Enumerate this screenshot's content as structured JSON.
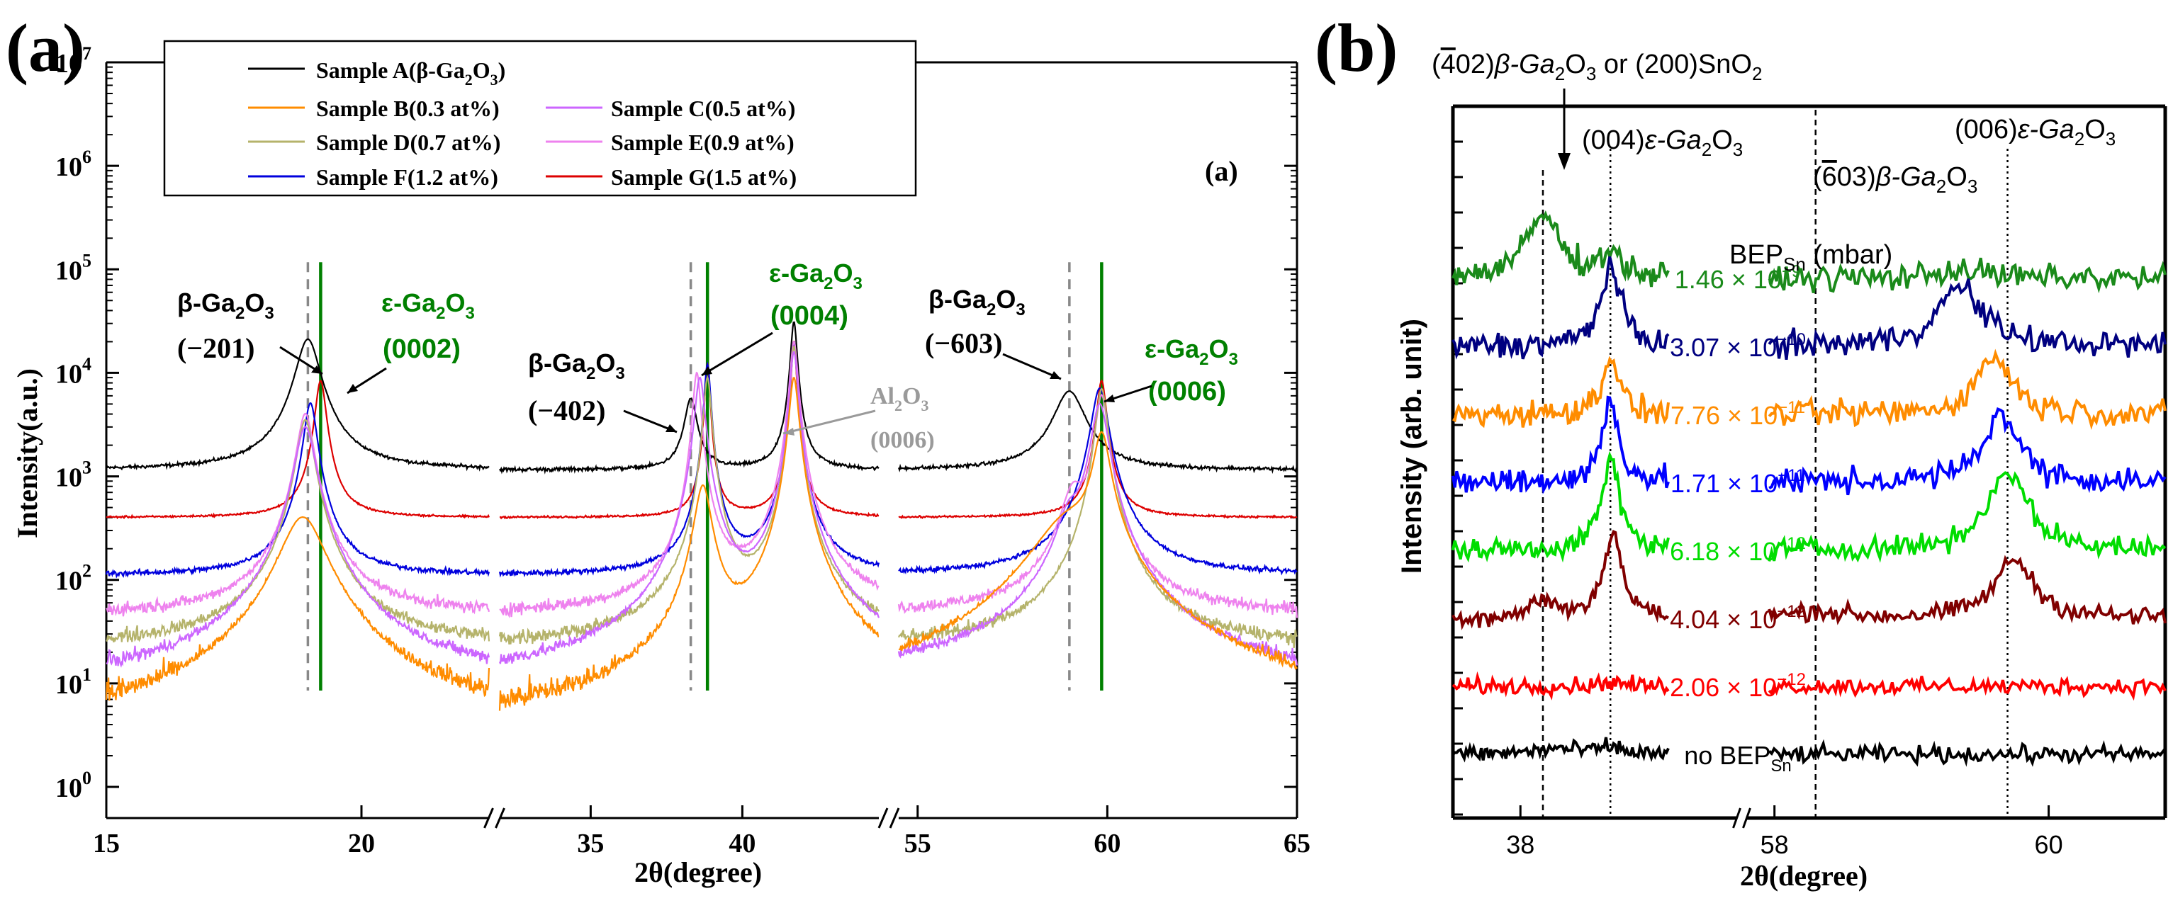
{
  "figure": {
    "label_a": "(a)",
    "label_b": "(b)"
  },
  "chart_data": [
    {
      "id": "a",
      "type": "line",
      "yscale": "log",
      "title": "",
      "panel_label": "(a)",
      "inner_label": "(a)",
      "xlabel": "2θ(degree)",
      "ylabel": "Intensity(a.u.)",
      "ylim": [
        0.5,
        10000000
      ],
      "segments": [
        {
          "xlim": [
            15,
            22.5
          ],
          "ticks": [
            15,
            20
          ]
        },
        {
          "xlim": [
            32,
            44.5
          ],
          "ticks": [
            35,
            40
          ]
        },
        {
          "xlim": [
            54.5,
            65
          ],
          "ticks": [
            55,
            60,
            65
          ]
        }
      ],
      "yticks": [
        {
          "v": 1,
          "base": "10",
          "exp": "0"
        },
        {
          "v": 10,
          "base": "10",
          "exp": "1"
        },
        {
          "v": 100,
          "base": "10",
          "exp": "2"
        },
        {
          "v": 1000,
          "base": "10",
          "exp": "3"
        },
        {
          "v": 10000,
          "base": "10",
          "exp": "4"
        },
        {
          "v": 100000,
          "base": "10",
          "exp": "5"
        },
        {
          "v": 1000000,
          "base": "10",
          "exp": "6"
        },
        {
          "v": 10000000,
          "base": "10",
          "exp": "7"
        }
      ],
      "legend": [
        {
          "name": "Sample A(β-Ga",
          "sub": "2",
          "mid": "O",
          "sub2": "3",
          "end": ")",
          "color": "#000000"
        },
        {
          "name": "Sample B(0.3 at%)",
          "color": "#ff8c00"
        },
        {
          "name": "Sample C(0.5 at%)",
          "color": "#cc66ff"
        },
        {
          "name": "Sample D(0.7 at%)",
          "color": "#b5b36b"
        },
        {
          "name": "Sample E(0.9 at%)",
          "color": "#ee82ee"
        },
        {
          "name": "Sample F(1.2 at%)",
          "color": "#0000dd"
        },
        {
          "name": "Sample G(1.5 at%)",
          "color": "#dd0000"
        }
      ],
      "series": [
        {
          "name": "Sample A",
          "color": "#000000",
          "base": 1150,
          "noise": 0.02,
          "peaks": [
            [
              18.95,
              20000,
              0.22
            ],
            [
              38.3,
              4500,
              0.2
            ],
            [
              41.7,
              30000,
              0.1
            ],
            [
              59.0,
              5500,
              0.4
            ]
          ]
        },
        {
          "name": "Sample G",
          "color": "#dd0000",
          "base": 400,
          "noise": 0.01,
          "peaks": [
            [
              19.2,
              8000,
              0.1
            ],
            [
              38.85,
              12000,
              0.08
            ],
            [
              41.7,
              20000,
              0.08
            ],
            [
              59.85,
              8000,
              0.12
            ]
          ]
        },
        {
          "name": "Sample F",
          "color": "#0000dd",
          "base": 110,
          "noise": 0.03,
          "peaks": [
            [
              19.0,
              5000,
              0.12
            ],
            [
              38.85,
              12000,
              0.1
            ],
            [
              41.7,
              20000,
              0.1
            ],
            [
              59.8,
              7000,
              0.2
            ]
          ]
        },
        {
          "name": "Sample E",
          "color": "#ee82ee",
          "base": 45,
          "noise": 0.08,
          "peaks": [
            [
              18.9,
              4000,
              0.15
            ],
            [
              38.5,
              10000,
              0.12
            ],
            [
              41.7,
              20000,
              0.12
            ],
            [
              59.1,
              600,
              0.3
            ],
            [
              59.85,
              6000,
              0.15
            ]
          ]
        },
        {
          "name": "Sample D",
          "color": "#b5b36b",
          "base": 22,
          "noise": 0.1,
          "peaks": [
            [
              18.9,
              3500,
              0.15
            ],
            [
              38.85,
              9000,
              0.12
            ],
            [
              41.7,
              18000,
              0.1
            ],
            [
              59.85,
              7000,
              0.14
            ]
          ]
        },
        {
          "name": "Sample C",
          "color": "#cc66ff",
          "base": 9,
          "noise": 0.15,
          "peaks": [
            [
              18.9,
              3000,
              0.18
            ],
            [
              38.6,
              9000,
              0.15
            ],
            [
              41.7,
              16000,
              0.12
            ],
            [
              59.0,
              300,
              0.3
            ],
            [
              59.8,
              5000,
              0.2
            ]
          ]
        },
        {
          "name": "Sample B",
          "color": "#ff8c00",
          "base": 3,
          "noise": 0.35,
          "peaks": [
            [
              18.85,
              400,
              0.4
            ],
            [
              38.7,
              800,
              0.25
            ],
            [
              41.7,
              9000,
              0.14
            ],
            [
              59.0,
              350,
              0.9
            ],
            [
              59.85,
              2500,
              0.2
            ]
          ]
        }
      ],
      "ref_lines": [
        {
          "x": 18.95,
          "style": "dash",
          "color": "#888888"
        },
        {
          "x": 19.2,
          "style": "solid",
          "color": "#008000"
        },
        {
          "x": 38.3,
          "style": "dash",
          "color": "#888888"
        },
        {
          "x": 38.85,
          "style": "solid",
          "color": "#008000"
        },
        {
          "x": 59.0,
          "style": "dash",
          "color": "#888888"
        },
        {
          "x": 59.85,
          "style": "solid",
          "color": "#008000"
        }
      ],
      "annotations": {
        "b201": {
          "phase": "β-Ga",
          "s1": "2",
          "o": "O",
          "s2": "3",
          "hkl": "(−201)"
        },
        "e0002": {
          "phase": "ε-Ga",
          "s1": "2",
          "o": "O",
          "s2": "3",
          "hkl": "(0002)"
        },
        "b402": {
          "phase": "β-Ga",
          "s1": "2",
          "o": "O",
          "s2": "3",
          "hkl": "(−402)"
        },
        "e0004": {
          "phase": "ε-Ga",
          "s1": "2",
          "o": "O",
          "s2": "3",
          "hkl": "(0004)"
        },
        "al": {
          "phase": "Al",
          "s1": "2",
          "o": "O",
          "s2": "3",
          "hkl": "(0006)"
        },
        "b603": {
          "phase": "β-Ga",
          "s1": "2",
          "o": "O",
          "s2": "3",
          "hkl": "(−603)"
        },
        "e0006": {
          "phase": "ε-Ga",
          "s1": "2",
          "o": "O",
          "s2": "3",
          "hkl": "(0006)"
        }
      }
    },
    {
      "id": "b",
      "type": "line",
      "title": "",
      "panel_label": "(b)",
      "xlabel": "2θ(degree)",
      "ylabel": "Intensity (arb. unit)",
      "segments": [
        {
          "xlim": [
            36.5,
            42.8
          ],
          "ticks": [
            38
          ]
        },
        {
          "xlim": [
            57.8,
            60.85
          ],
          "ticks": [
            58,
            60
          ]
        }
      ],
      "ref_lines": [
        {
          "x": 38.5,
          "style": "dash"
        },
        {
          "x": 40.0,
          "style": "dot"
        },
        {
          "x": 58.3,
          "style": "dash"
        },
        {
          "x": 59.7,
          "style": "dot"
        }
      ],
      "legend_title": {
        "pre": "BEP",
        "sub": "Sn",
        "post": " (mbar)"
      },
      "series": [
        {
          "label": "1.46",
          "exp": "−9",
          "color": "#1a8a1a",
          "offset": 7,
          "amp": 0.35,
          "peaks": [
            [
              38.5,
              1.7,
              0.45
            ],
            [
              40.0,
              0.7,
              0.25
            ],
            [
              59.35,
              0.25,
              0.2
            ]
          ]
        },
        {
          "label": "3.07",
          "exp": "−10",
          "color": "#000080",
          "offset": 6,
          "amp": 0.35,
          "peaks": [
            [
              40.0,
              2.1,
              0.28
            ],
            [
              59.35,
              1.6,
              0.2
            ]
          ]
        },
        {
          "label": "7.76",
          "exp": "−11",
          "color": "#ff8c00",
          "offset": 5,
          "amp": 0.35,
          "peaks": [
            [
              40.0,
              1.6,
              0.22
            ],
            [
              59.6,
              1.6,
              0.15
            ]
          ]
        },
        {
          "label": "1.71",
          "exp": "−11",
          "color": "#0000ff",
          "offset": 4,
          "amp": 0.35,
          "peaks": [
            [
              40.0,
              2.2,
              0.22
            ],
            [
              59.65,
              1.9,
              0.15
            ]
          ]
        },
        {
          "label": "6.18",
          "exp": "−12",
          "color": "#00dd00",
          "offset": 3,
          "amp": 0.3,
          "peaks": [
            [
              40.0,
              2.4,
              0.25
            ],
            [
              59.7,
              2.2,
              0.17
            ]
          ]
        },
        {
          "label": "4.04",
          "exp": "−12",
          "color": "#800000",
          "offset": 2,
          "amp": 0.25,
          "peaks": [
            [
              38.5,
              0.5,
              0.3
            ],
            [
              40.05,
              2.3,
              0.25
            ],
            [
              58.3,
              0.2,
              0.2
            ],
            [
              59.75,
              1.6,
              0.17
            ]
          ]
        },
        {
          "label": "2.06",
          "exp": "−12",
          "color": "#ff0000",
          "offset": 1,
          "amp": 0.22,
          "peaks": [
            [
              40.0,
              0.12,
              0.3
            ]
          ]
        },
        {
          "label": "no BEP",
          "sub": "Sn",
          "exp": "",
          "color": "#000000",
          "offset": 0,
          "amp": 0.22,
          "peaks": [
            [
              38.8,
              0.15,
              0.6
            ],
            [
              40.0,
              0.18,
              0.3
            ]
          ]
        }
      ],
      "annotations": {
        "top": {
          "pre": "(",
          "bar": "4",
          "post": "02)",
          "phase": "β-Ga",
          "s1": "2",
          "o": "O",
          "s2": "3",
          "or": " or (200)SnO",
          "s3": "2"
        },
        "e004": {
          "hkl": "(004)",
          "phase": "ε-Ga",
          "s1": "2",
          "o": "O",
          "s2": "3"
        },
        "e006": {
          "hkl": "(006)",
          "phase": "ε-Ga",
          "s1": "2",
          "o": "O",
          "s2": "3"
        },
        "b603": {
          "pre": "(",
          "bar": "6",
          "post": "03)",
          "phase": "β-Ga",
          "s1": "2",
          "o": "O",
          "s2": "3"
        }
      }
    }
  ]
}
